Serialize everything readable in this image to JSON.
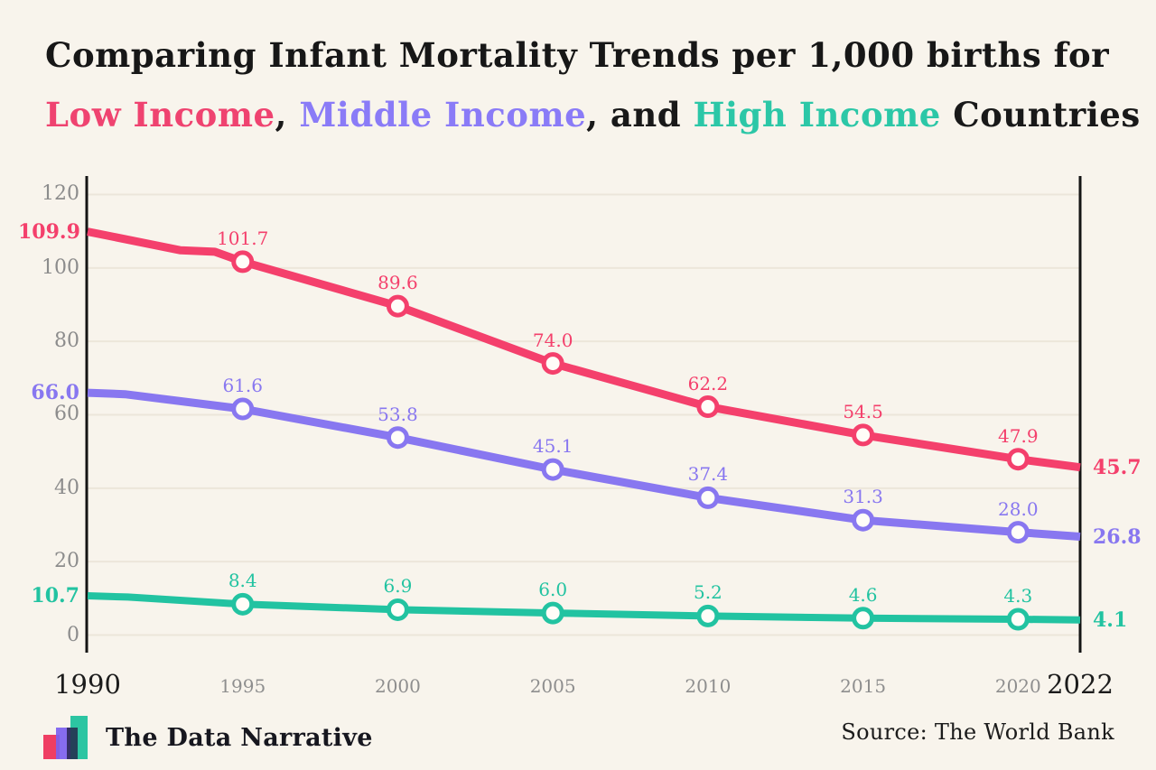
{
  "title": {
    "line1": "Comparing Infant Mortality Trends per 1,000 births for",
    "line2_segments": [
      {
        "text": "Low Income",
        "color": "#ef4370"
      },
      {
        "text": ", ",
        "color": "#191919"
      },
      {
        "text": "Middle Income",
        "color": "#8a7bf7"
      },
      {
        "text": ", and ",
        "color": "#191919"
      },
      {
        "text": "High Income",
        "color": "#2cc7a7"
      },
      {
        "text": " Countries",
        "color": "#191919"
      }
    ]
  },
  "chart_data": {
    "type": "line",
    "title": "Comparing Infant Mortality Trends per 1,000 births for Low Income, Middle Income, and High Income Countries",
    "x": [
      1990,
      1995,
      2000,
      2005,
      2010,
      2015,
      2020,
      2022
    ],
    "x_tick_labels": [
      {
        "year": 1990,
        "text": "1990",
        "emphasis": true
      },
      {
        "year": 1995,
        "text": "1995",
        "emphasis": false
      },
      {
        "year": 2000,
        "text": "2000",
        "emphasis": false
      },
      {
        "year": 2005,
        "text": "2005",
        "emphasis": false
      },
      {
        "year": 2010,
        "text": "2010",
        "emphasis": false
      },
      {
        "year": 2015,
        "text": "2015",
        "emphasis": false
      },
      {
        "year": 2020,
        "text": "2020",
        "emphasis": false
      },
      {
        "year": 2022,
        "text": "2022",
        "emphasis": true
      }
    ],
    "y_axis": {
      "ticks": [
        0,
        20,
        40,
        60,
        80,
        100,
        120
      ],
      "range": [
        0,
        120
      ],
      "grid": true
    },
    "series": [
      {
        "name": "Low Income",
        "color": "#f4406c",
        "values": [
          109.9,
          101.7,
          89.6,
          74.0,
          62.2,
          54.5,
          47.9,
          45.7
        ],
        "point_labels": [
          "109.9",
          "101.7",
          "89.6",
          "74.0",
          "62.2",
          "54.5",
          "47.9",
          "45.7"
        ],
        "shape_extra": [
          [
            1993.0,
            104.8
          ],
          [
            1994.1,
            104.4
          ]
        ]
      },
      {
        "name": "Middle Income",
        "color": "#8877f0",
        "values": [
          66.0,
          61.6,
          53.8,
          45.1,
          37.4,
          31.3,
          28.0,
          26.8
        ],
        "point_labels": [
          "66.0",
          "61.6",
          "53.8",
          "45.1",
          "37.4",
          "31.3",
          "28.0",
          "26.8"
        ],
        "shape_extra": [
          [
            1991.2,
            65.6
          ]
        ]
      },
      {
        "name": "High Income",
        "color": "#22c3a1",
        "values": [
          10.7,
          8.4,
          6.9,
          6.0,
          5.2,
          4.6,
          4.3,
          4.1
        ],
        "point_labels": [
          "10.7",
          "8.4",
          "6.9",
          "6.0",
          "5.2",
          "4.6",
          "4.3",
          "4.1"
        ],
        "shape_extra": [
          [
            1991.3,
            10.35
          ]
        ]
      }
    ],
    "legend": "colored words in title",
    "source": "Source: The World Bank"
  },
  "footer": {
    "brand": "The Data Narrative",
    "source": "Source: The World Bank",
    "logo_bar_colors": {
      "pink": "#ef3e63",
      "purple": "#7c5ff0",
      "navy": "#232349",
      "teal": "#2cc5a2"
    }
  },
  "colors": {
    "background": "#f8f4ec",
    "grid": "#ece6da",
    "axis": "#141414",
    "tick_text": "#8c8c8c",
    "year_emphasis": "#1c1c1c",
    "marker_fill": "#fffdf8"
  }
}
